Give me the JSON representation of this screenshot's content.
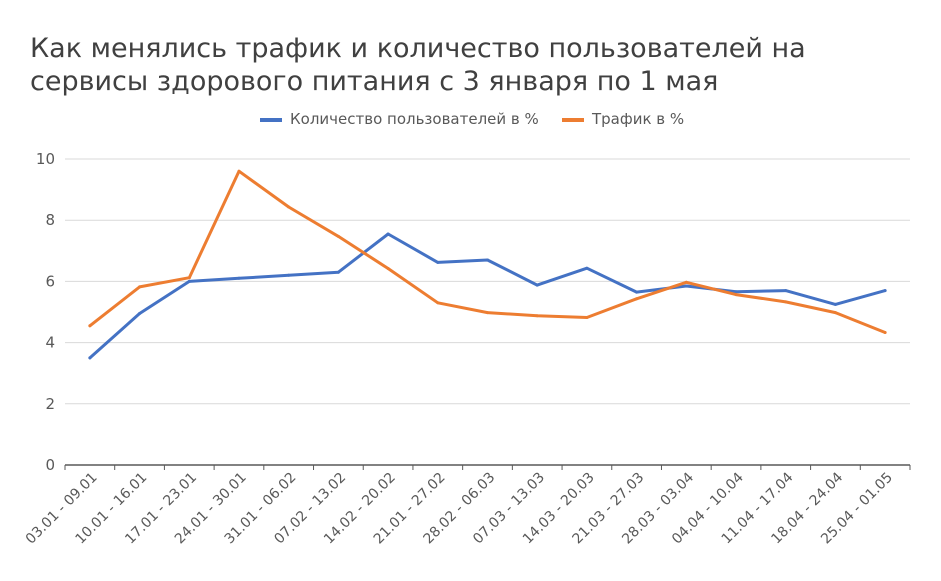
{
  "chart_data": {
    "type": "line",
    "title": "Как менялись трафик и количество пользователей на сервисы здорового питания с 3 января по 1 мая",
    "xlabel": "",
    "ylabel": "",
    "categories": [
      "03.01 - 09.01",
      "10.01 - 16.01",
      "17.01 - 23.01",
      "24.01 - 30.01",
      "31.01 - 06.02",
      "07.02 - 13.02",
      "14.02 - 20.02",
      "21.01 - 27.02",
      "28.02 - 06.03",
      "07.03 - 13.03",
      "14.03 - 20.03",
      "21.03 - 27.03",
      "28.03 - 03.04",
      "04.04 - 10.04",
      "11.04 - 17.04",
      "18.04 - 24.04",
      "25.04 - 01.05"
    ],
    "series": [
      {
        "name": "Количество пользователей в %",
        "color": "#4472C4",
        "values": [
          3.5,
          4.95,
          6.0,
          6.1,
          6.2,
          6.3,
          7.55,
          6.62,
          6.7,
          5.88,
          6.43,
          5.65,
          5.85,
          5.66,
          5.7,
          5.25,
          5.7
        ]
      },
      {
        "name": "Трафик в %",
        "color": "#ED7D31",
        "values": [
          4.55,
          5.82,
          6.12,
          9.6,
          8.43,
          7.47,
          6.42,
          5.3,
          4.98,
          4.88,
          4.82,
          5.43,
          5.97,
          5.57,
          5.33,
          4.98,
          4.33
        ]
      }
    ],
    "ylim": [
      0,
      10
    ],
    "yticks": [
      0,
      2,
      4,
      6,
      8,
      10
    ],
    "grid": true,
    "legend_position": "top"
  }
}
